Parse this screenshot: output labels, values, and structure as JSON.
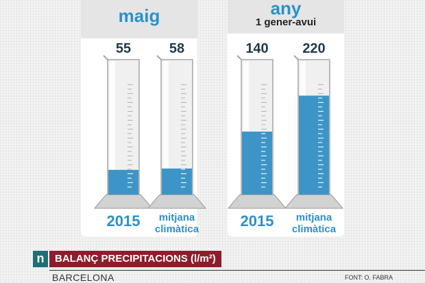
{
  "colors": {
    "accent": "#2a91c9",
    "water": "#3d95c7",
    "badge": "#1d6f73",
    "title_bar": "#8e1d2c",
    "panel_header": "#e5e5e5"
  },
  "icons": {
    "logo": "n-logo-badge"
  },
  "panels": [
    {
      "title": "maig",
      "subtitle": ""
    },
    {
      "title": "any",
      "subtitle": "1 gener-avui"
    }
  ],
  "chart_data": {
    "type": "bar",
    "title": "BALANÇ PRECIPITACIONS (l/m²)",
    "subtitle": "BARCELONA",
    "source": "FONT: O. FABRA",
    "unit": "l/m²",
    "ylim": [
      0,
      300
    ],
    "grid": false,
    "groups": [
      {
        "name": "maig",
        "bars": [
          {
            "label": "2015",
            "value": 55
          },
          {
            "label": "mitjana climàtica",
            "value": 58
          }
        ]
      },
      {
        "name": "any",
        "period": "1 gener-avui",
        "bars": [
          {
            "label": "2015",
            "value": 140
          },
          {
            "label": "mitjana climàtica",
            "value": 220
          }
        ]
      }
    ]
  },
  "footer": {
    "badge": "n",
    "title": "BALANÇ PRECIPITACIONS (l/m²)",
    "city": "BARCELONA",
    "source": "FONT: O. FABRA"
  }
}
